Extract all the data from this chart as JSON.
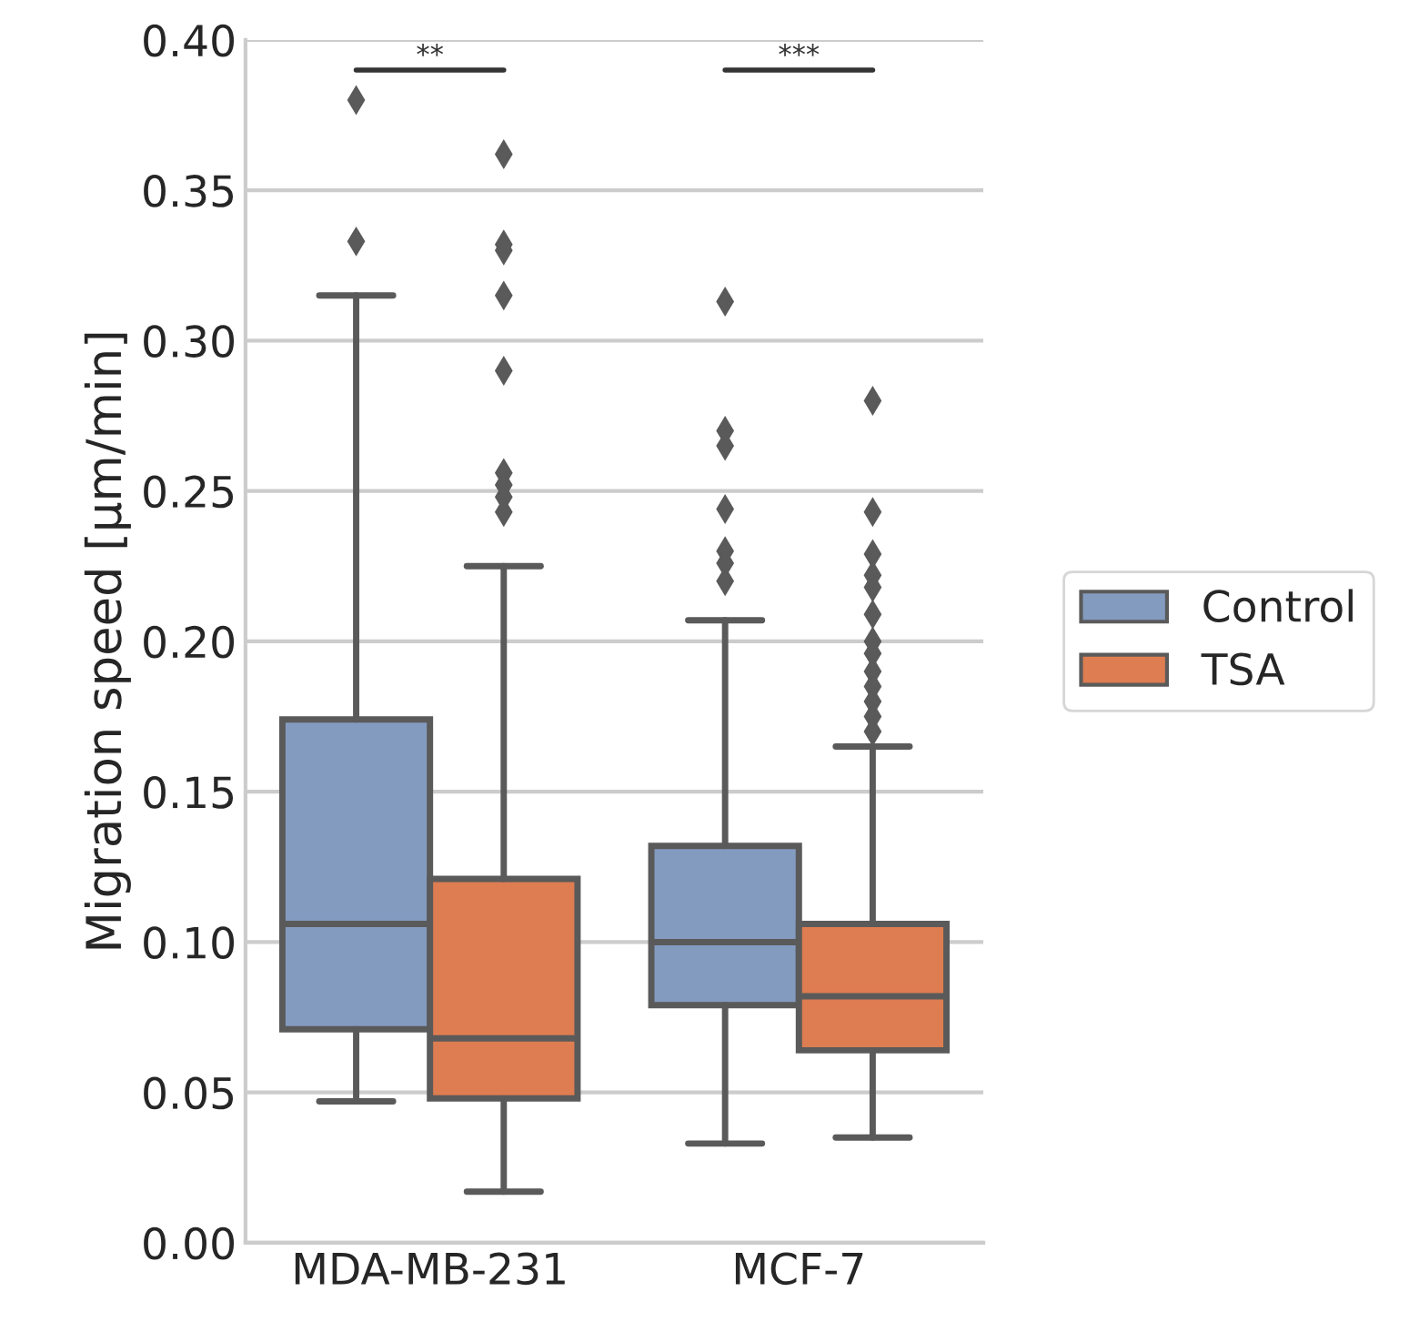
{
  "chart_data": {
    "type": "box",
    "ylabel": "Migration speed [µm/min]",
    "categories": [
      "MDA-MB-231",
      "MCF-7"
    ],
    "series": [
      {
        "name": "Control",
        "color": "#849bc0",
        "boxes": [
          {
            "low": 0.047,
            "q1": 0.071,
            "median": 0.106,
            "q3": 0.174,
            "high": 0.315,
            "outliers": [
              0.38,
              0.333
            ]
          },
          {
            "low": 0.033,
            "q1": 0.079,
            "median": 0.1,
            "q3": 0.132,
            "high": 0.207,
            "outliers": [
              0.313,
              0.27,
              0.265,
              0.244,
              0.23,
              0.226,
              0.22
            ]
          }
        ]
      },
      {
        "name": "TSA",
        "color": "#dd7d51",
        "boxes": [
          {
            "low": 0.017,
            "q1": 0.048,
            "median": 0.068,
            "q3": 0.121,
            "high": 0.225,
            "outliers": [
              0.362,
              0.332,
              0.33,
              0.315,
              0.29,
              0.256,
              0.252,
              0.248,
              0.243
            ]
          },
          {
            "low": 0.035,
            "q1": 0.064,
            "median": 0.082,
            "q3": 0.106,
            "high": 0.165,
            "outliers": [
              0.28,
              0.243,
              0.229,
              0.222,
              0.218,
              0.209,
              0.2,
              0.196,
              0.19,
              0.185,
              0.18,
              0.175,
              0.17
            ]
          }
        ]
      }
    ],
    "ylim": [
      0,
      0.4
    ],
    "yticks": [
      {
        "value": 0,
        "label": "0.00"
      },
      {
        "value": 0.05,
        "label": "0.05"
      },
      {
        "value": 0.1,
        "label": "0.10"
      },
      {
        "value": 0.15,
        "label": "0.15"
      },
      {
        "value": 0.2,
        "label": "0.20"
      },
      {
        "value": 0.25,
        "label": "0.25"
      },
      {
        "value": 0.3,
        "label": "0.30"
      },
      {
        "value": 0.35,
        "label": "0.35"
      },
      {
        "value": 0.4,
        "label": "0.40"
      }
    ],
    "grid": "y",
    "legend": "right",
    "marker": "diamond",
    "annotations": [
      "**",
      "***"
    ]
  }
}
